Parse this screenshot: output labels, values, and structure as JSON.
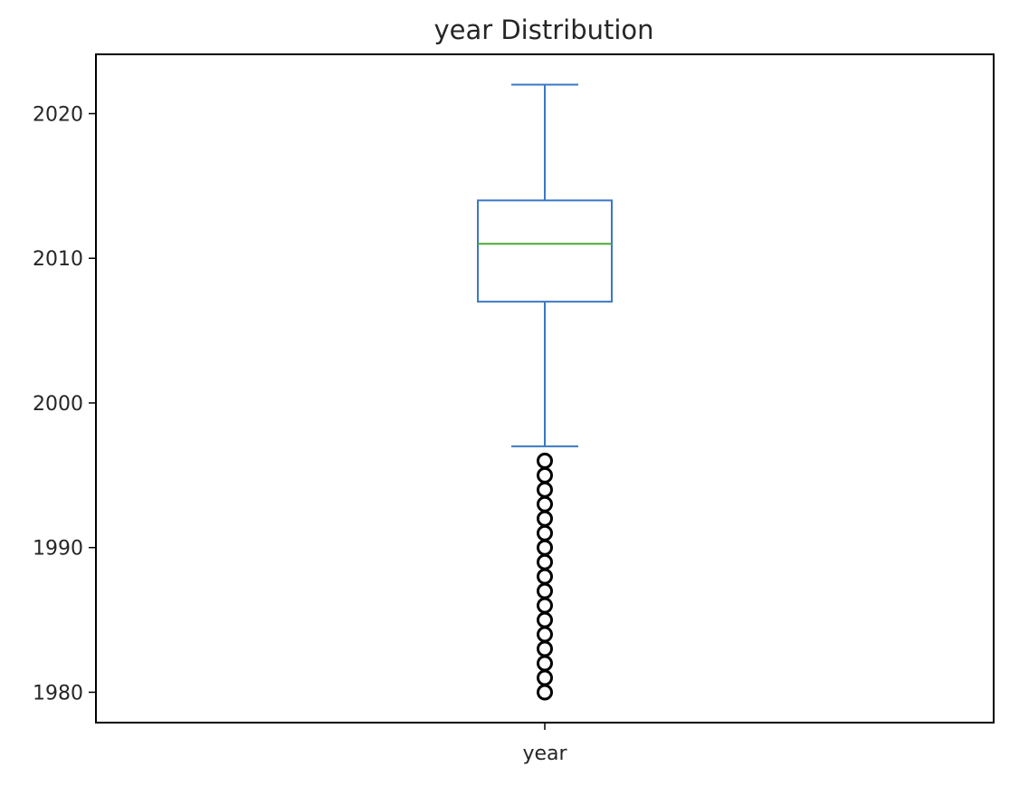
{
  "chart_data": {
    "type": "box",
    "title": "year Distribution",
    "xlabel": "",
    "ylabel": "",
    "categories": [
      "year"
    ],
    "ylim": [
      1977.9,
      2024.1
    ],
    "yticks": [
      1980,
      1990,
      2000,
      2010,
      2020
    ],
    "ytick_labels": [
      "1980",
      "1990",
      "2000",
      "2010",
      "2020"
    ],
    "grid": false,
    "boxes": [
      {
        "category": "year",
        "whisker_low": 1997,
        "q1": 2007,
        "median": 2011,
        "q3": 2014,
        "whisker_high": 2022,
        "outliers": [
          1980,
          1981,
          1982,
          1983,
          1984,
          1985,
          1986,
          1987,
          1988,
          1989,
          1990,
          1991,
          1992,
          1993,
          1994,
          1995,
          1996
        ]
      }
    ],
    "colors": {
      "box": "#3a78c4",
      "median": "#4ca92f",
      "outlier": "#000000",
      "axes": "#000000"
    }
  }
}
